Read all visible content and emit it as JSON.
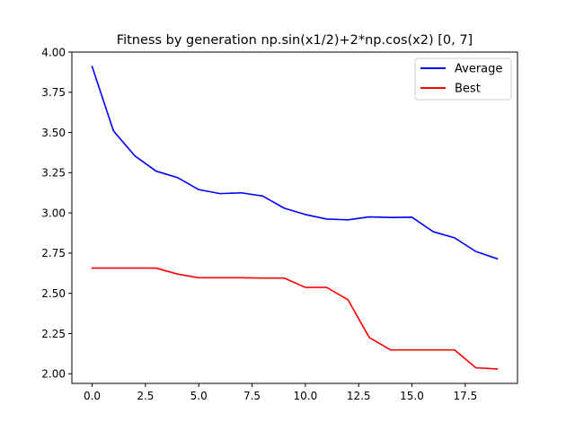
{
  "chart_data": {
    "type": "line",
    "title": "Fitness by generation np.sin(x1/2)+2*np.cos(x2) [0, 7]",
    "xlabel": "",
    "ylabel": "",
    "xlim": [
      -0.95,
      19.95
    ],
    "ylim": [
      1.94,
      4.0
    ],
    "xticks": [
      0,
      2.5,
      5,
      7.5,
      10,
      12.5,
      15,
      17.5
    ],
    "xtick_labels": [
      "0.0",
      "2.5",
      "5.0",
      "7.5",
      "10.0",
      "12.5",
      "15.0",
      "17.5"
    ],
    "yticks": [
      2.0,
      2.25,
      2.5,
      2.75,
      3.0,
      3.25,
      3.5,
      3.75,
      4.0
    ],
    "ytick_labels": [
      "2.00",
      "2.25",
      "2.50",
      "2.75",
      "3.00",
      "3.25",
      "3.50",
      "3.75",
      "4.00"
    ],
    "grid": false,
    "legend_position": "top-right",
    "x": [
      0,
      1,
      2,
      3,
      4,
      5,
      6,
      7,
      8,
      9,
      10,
      11,
      12,
      13,
      14,
      15,
      16,
      17,
      18,
      19
    ],
    "series": [
      {
        "name": "Average",
        "color": "#0000ff",
        "values": [
          3.91,
          3.51,
          3.355,
          3.26,
          3.22,
          3.145,
          3.12,
          3.125,
          3.105,
          3.03,
          2.99,
          2.962,
          2.957,
          2.975,
          2.972,
          2.973,
          2.883,
          2.845,
          2.76,
          2.715
        ]
      },
      {
        "name": "Best",
        "color": "#ff0000",
        "values": [
          2.657,
          2.657,
          2.657,
          2.657,
          2.62,
          2.597,
          2.597,
          2.597,
          2.595,
          2.595,
          2.537,
          2.537,
          2.46,
          2.225,
          2.148,
          2.148,
          2.148,
          2.148,
          2.037,
          2.03
        ]
      }
    ]
  }
}
